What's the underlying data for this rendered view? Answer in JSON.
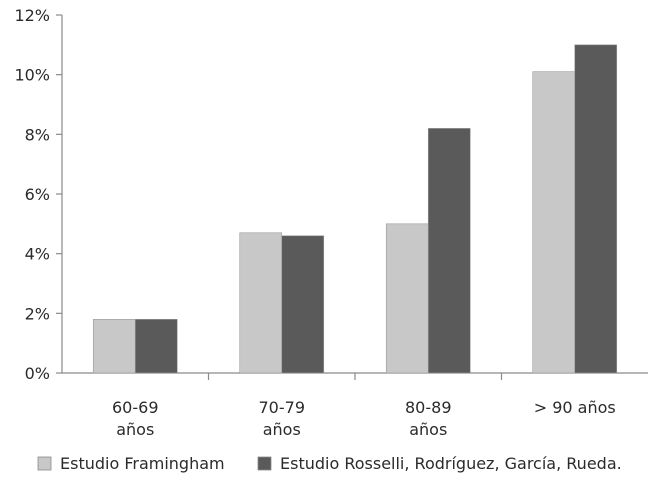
{
  "chart_data": {
    "type": "bar",
    "title": "",
    "xlabel": "",
    "ylabel": "",
    "ylim": [
      0,
      12
    ],
    "yticks": [
      {
        "value": 0,
        "label": "0%"
      },
      {
        "value": 2,
        "label": "2%"
      },
      {
        "value": 4,
        "label": "4%"
      },
      {
        "value": 6,
        "label": "6%"
      },
      {
        "value": 8,
        "label": "8%"
      },
      {
        "value": 10,
        "label": "10%"
      },
      {
        "value": 12,
        "label": "12%"
      }
    ],
    "categories": [
      [
        "60-69",
        "años"
      ],
      [
        "70-79",
        "años"
      ],
      [
        "80-89",
        "años"
      ],
      [
        "> 90 años"
      ]
    ],
    "series": [
      {
        "name": "Estudio Framingham",
        "color": "#c8c8c8",
        "values": [
          1.8,
          4.7,
          5.0,
          10.1
        ]
      },
      {
        "name": "Estudio Rosselli, Rodríguez, García, Rueda.",
        "color": "#5a5a5a",
        "values": [
          1.8,
          4.6,
          8.2,
          11.0
        ]
      }
    ],
    "grid": false,
    "legend_position": "bottom"
  }
}
